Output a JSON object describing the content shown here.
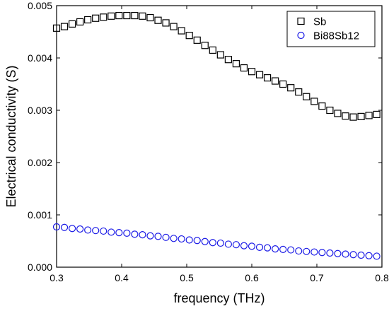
{
  "chart_data": {
    "type": "scatter",
    "title": "",
    "xlabel": "frequency (THz)",
    "ylabel": "Electrical conductivity (S)",
    "xlim": [
      0.3,
      0.8
    ],
    "ylim": [
      0.0,
      0.005
    ],
    "xticks": [
      0.3,
      0.4,
      0.5,
      0.6,
      0.7,
      0.8
    ],
    "xtick_labels": [
      "0.3",
      "0.4",
      "0.5",
      "0.6",
      "0.7",
      "0.8"
    ],
    "yticks": [
      0.0,
      0.001,
      0.002,
      0.003,
      0.004,
      0.005
    ],
    "ytick_labels": [
      "0.000",
      "0.001",
      "0.002",
      "0.003",
      "0.004",
      "0.005"
    ],
    "grid": false,
    "legend_position": "top-right",
    "x": [
      0.3,
      0.312,
      0.324,
      0.336,
      0.348,
      0.36,
      0.372,
      0.384,
      0.396,
      0.408,
      0.42,
      0.432,
      0.444,
      0.456,
      0.468,
      0.48,
      0.492,
      0.504,
      0.516,
      0.528,
      0.54,
      0.552,
      0.564,
      0.576,
      0.588,
      0.6,
      0.612,
      0.624,
      0.636,
      0.648,
      0.66,
      0.672,
      0.684,
      0.696,
      0.708,
      0.72,
      0.732,
      0.744,
      0.756,
      0.768,
      0.78,
      0.792
    ],
    "series": [
      {
        "name": "Sb",
        "marker": "square",
        "color": "#000000",
        "values": [
          0.00457,
          0.0046,
          0.00465,
          0.00469,
          0.00473,
          0.00476,
          0.00478,
          0.0048,
          0.00481,
          0.00481,
          0.00481,
          0.0048,
          0.00477,
          0.00472,
          0.00467,
          0.0046,
          0.00452,
          0.00443,
          0.00434,
          0.00424,
          0.00415,
          0.00406,
          0.00397,
          0.00389,
          0.00381,
          0.00374,
          0.00368,
          0.00362,
          0.00356,
          0.0035,
          0.00343,
          0.00335,
          0.00326,
          0.00317,
          0.00308,
          0.003,
          0.00294,
          0.00289,
          0.00287,
          0.00288,
          0.0029,
          0.00292
        ]
      },
      {
        "name": "Bi88Sb12",
        "marker": "circle",
        "color": "#1a1ae6",
        "values": [
          0.00077,
          0.00076,
          0.00074,
          0.00073,
          0.00071,
          0.0007,
          0.00069,
          0.00067,
          0.00066,
          0.00065,
          0.00063,
          0.00062,
          0.0006,
          0.00059,
          0.00057,
          0.00055,
          0.00054,
          0.00052,
          0.00051,
          0.00049,
          0.00047,
          0.00046,
          0.00044,
          0.00043,
          0.00041,
          0.0004,
          0.00038,
          0.00037,
          0.00035,
          0.00034,
          0.00033,
          0.00031,
          0.0003,
          0.00029,
          0.00028,
          0.00027,
          0.00026,
          0.00025,
          0.00024,
          0.00023,
          0.00022,
          0.00021
        ]
      }
    ]
  }
}
